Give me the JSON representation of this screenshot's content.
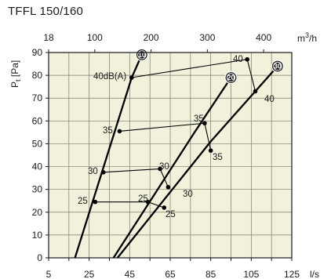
{
  "chart_data": {
    "type": "line",
    "title": "TFFL 150/160",
    "x_bottom": {
      "unit": "l/s",
      "min": 5,
      "max": 125,
      "ticks": [
        5,
        25,
        45,
        65,
        85,
        105,
        125
      ]
    },
    "x_top": {
      "unit": "m3/h",
      "unit_base": "m",
      "unit_exp": "3",
      "unit_tail": "/h",
      "ticks": [
        18,
        100,
        200,
        300,
        400
      ]
    },
    "y": {
      "label_main": "P",
      "label_sub": "t",
      "label_tail": " [Pa]",
      "min": 0,
      "max": 90,
      "ticks": [
        0,
        10,
        20,
        30,
        40,
        50,
        60,
        70,
        80,
        90
      ]
    },
    "grid": true,
    "background": "#f1f1dc",
    "line_color": "#000000",
    "series": [
      {
        "name": "10",
        "points": [
          [
            18,
            0
          ],
          [
            46,
            79
          ],
          [
            51,
            89
          ]
        ],
        "marker_at": [
          51,
          89
        ]
      },
      {
        "name": "20",
        "points": [
          [
            37,
            0
          ],
          [
            77,
            55
          ],
          [
            95,
            79
          ]
        ],
        "marker_at": [
          95,
          79
        ]
      },
      {
        "name": "30",
        "points": [
          [
            39,
            0
          ],
          [
            85,
            51
          ],
          [
            118,
            84
          ]
        ],
        "marker_at": [
          118,
          84
        ]
      }
    ],
    "sound_lines": [
      {
        "level": "25",
        "points": [
          [
            28,
            24.5
          ],
          [
            54,
            24.5
          ],
          [
            62,
            22
          ]
        ]
      },
      {
        "level": "30",
        "points": [
          [
            32,
            37.5
          ],
          [
            60,
            39
          ],
          [
            64,
            31
          ]
        ]
      },
      {
        "level": "35",
        "points": [
          [
            40,
            55.5
          ],
          [
            82,
            59
          ],
          [
            85,
            47
          ]
        ]
      },
      {
        "level": "40",
        "points": [
          [
            46,
            79
          ],
          [
            103,
            87
          ],
          [
            107,
            73
          ]
        ]
      }
    ],
    "annotations": [
      "25",
      "25",
      "25",
      "30",
      "30",
      "30",
      "35",
      "35",
      "35",
      "40dB(A)",
      "40",
      "40"
    ]
  }
}
